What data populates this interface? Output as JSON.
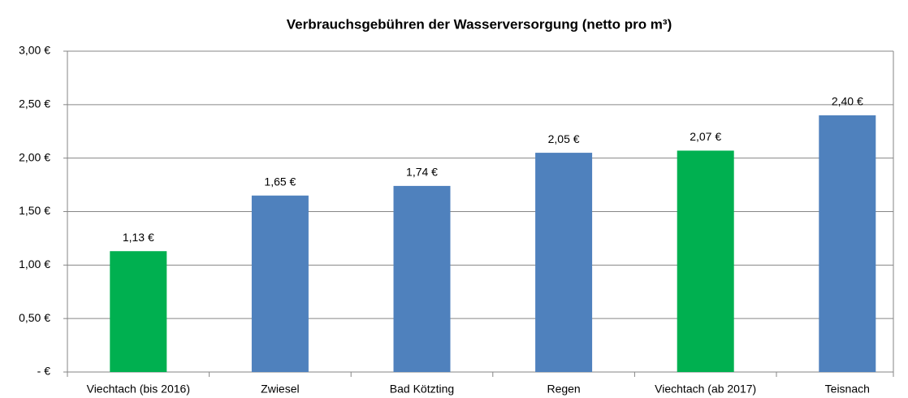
{
  "chart_data": {
    "type": "bar",
    "title": "Verbrauchsgebühren der Wasserversorgung (netto pro m³)",
    "categories": [
      "Viechtach (bis 2016)",
      "Zwiesel",
      "Bad Kötzting",
      "Regen",
      "Viechtach (ab 2017)",
      "Teisnach"
    ],
    "values": [
      1.13,
      1.65,
      1.74,
      2.05,
      2.07,
      2.4
    ],
    "value_labels": [
      "1,13 €",
      "1,65 €",
      "1,74 €",
      "2,05 €",
      "2,07 €",
      "2,40 €"
    ],
    "colors": [
      "#00b050",
      "#4f81bd",
      "#4f81bd",
      "#4f81bd",
      "#00b050",
      "#4f81bd"
    ],
    "ylim": [
      0,
      3
    ],
    "yticks": [
      {
        "value": 0,
        "label": "-   €"
      },
      {
        "value": 0.5,
        "label": "0,50 €"
      },
      {
        "value": 1,
        "label": "1,00 €"
      },
      {
        "value": 1.5,
        "label": "1,50 €"
      },
      {
        "value": 2,
        "label": "2,00 €"
      },
      {
        "value": 2.5,
        "label": "2,50 €"
      },
      {
        "value": 3,
        "label": "3,00 €"
      }
    ],
    "grid": true
  }
}
